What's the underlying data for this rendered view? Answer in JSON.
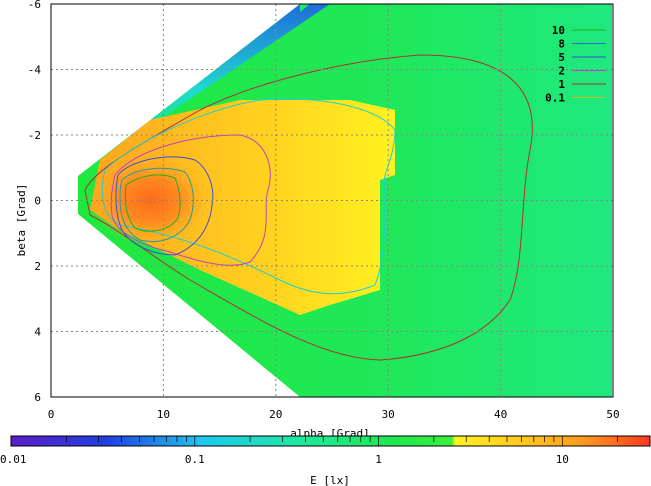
{
  "chart_data": {
    "type": "heatmap",
    "title": "",
    "xlabel": "alpha [Grad]",
    "ylabel": "beta [Grad]",
    "xlim": [
      0,
      50
    ],
    "ylim": [
      6,
      -6
    ],
    "x_ticks": [
      "0",
      "10",
      "20",
      "30",
      "40",
      "50"
    ],
    "y_ticks": [
      "-6",
      "-4",
      "-2",
      "0",
      "2",
      "4",
      "6"
    ],
    "grid": true,
    "legend_position": "top-right",
    "contour_levels": [
      {
        "label": "10",
        "color": "#1fb01f"
      },
      {
        "label": "8",
        "color": "#2a6cc8"
      },
      {
        "label": "5",
        "color": "#3a4fd6"
      },
      {
        "label": "2",
        "color": "#c040c0"
      },
      {
        "label": "1",
        "color": "#b03030"
      },
      {
        "label": "0.1",
        "color": "#c8c020"
      }
    ],
    "colorbar": {
      "label": "E [lx]",
      "scale": "log",
      "range": [
        0.01,
        30
      ],
      "tick_labels": [
        "0.01",
        "0.1",
        "1",
        "10"
      ]
    }
  }
}
